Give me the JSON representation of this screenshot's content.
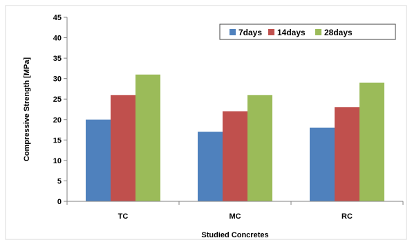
{
  "chart_data": {
    "type": "bar",
    "title": "",
    "xlabel": "Studied Concretes",
    "ylabel": "Compressive Strength [MPa]",
    "ylim": [
      0,
      45
    ],
    "yticks": [
      0,
      5,
      10,
      15,
      20,
      25,
      30,
      35,
      40,
      45
    ],
    "categories": [
      "TC",
      "MC",
      "RC"
    ],
    "series": [
      {
        "name": "7days",
        "color": "#4f81bd",
        "values": [
          20,
          17,
          18
        ]
      },
      {
        "name": "14days",
        "color": "#c0504d",
        "values": [
          26,
          22,
          23
        ]
      },
      {
        "name": "28days",
        "color": "#9bbb59",
        "values": [
          31,
          26,
          29
        ]
      }
    ],
    "legend": "top-right",
    "grid": false
  }
}
